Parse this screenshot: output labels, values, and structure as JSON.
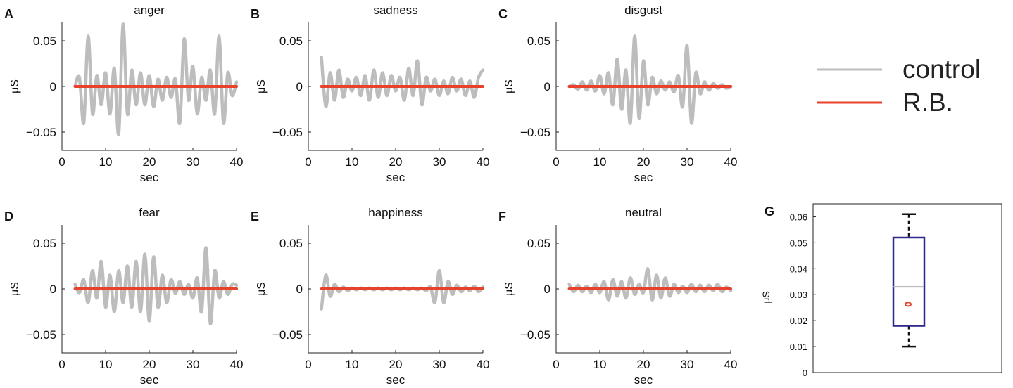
{
  "legend": {
    "items": [
      {
        "label": "control",
        "color": "#bdbdbd"
      },
      {
        "label": "R.B.",
        "color": "#e8412c"
      }
    ]
  },
  "chart_data": [
    {
      "panel": "A",
      "title": "anger",
      "type": "line",
      "xlabel": "sec",
      "ylabel": "μS",
      "xlim": [
        0,
        40
      ],
      "ylim": [
        -0.07,
        0.07
      ],
      "xticks": [
        "0",
        "10",
        "20",
        "30",
        "40"
      ],
      "yticks": [
        "−0.05",
        "0",
        "0.05"
      ],
      "series": [
        {
          "name": "control",
          "color": "#bdbdbd",
          "x": [
            3,
            4,
            5,
            6,
            7,
            8,
            9,
            10,
            11,
            12,
            13,
            14,
            15,
            16,
            17,
            18,
            19,
            20,
            21,
            22,
            23,
            24,
            25,
            26,
            27,
            28,
            29,
            30,
            31,
            32,
            33,
            34,
            35,
            36,
            37,
            38,
            39,
            40
          ],
          "y": [
            0,
            0.01,
            -0.04,
            0.055,
            -0.03,
            0.012,
            -0.02,
            0.015,
            -0.03,
            0.02,
            -0.052,
            0.068,
            -0.03,
            0.018,
            -0.02,
            0.015,
            -0.02,
            0.012,
            -0.022,
            0.008,
            -0.015,
            0.01,
            -0.012,
            0.008,
            -0.04,
            0.052,
            -0.015,
            0.022,
            -0.03,
            0.01,
            -0.015,
            0.018,
            -0.03,
            0.055,
            -0.04,
            0.015,
            -0.01,
            0.005
          ]
        },
        {
          "name": "R.B.",
          "color": "#e8412c",
          "x": [
            3,
            40
          ],
          "y": [
            0,
            0
          ]
        }
      ]
    },
    {
      "panel": "B",
      "title": "sadness",
      "type": "line",
      "xlabel": "sec",
      "ylabel": "μS",
      "xlim": [
        0,
        40
      ],
      "ylim": [
        -0.07,
        0.07
      ],
      "xticks": [
        "0",
        "10",
        "20",
        "30",
        "40"
      ],
      "yticks": [
        "−0.05",
        "0",
        "0.05"
      ],
      "series": [
        {
          "name": "control",
          "color": "#bdbdbd",
          "x": [
            3,
            4,
            5,
            6,
            7,
            8,
            9,
            10,
            11,
            12,
            13,
            14,
            15,
            16,
            17,
            18,
            19,
            20,
            21,
            22,
            23,
            24,
            25,
            26,
            27,
            28,
            29,
            30,
            31,
            32,
            33,
            34,
            35,
            36,
            37,
            38,
            39,
            40
          ],
          "y": [
            0.032,
            -0.022,
            0.015,
            -0.015,
            0.018,
            -0.012,
            0.008,
            -0.005,
            0.01,
            -0.01,
            0.012,
            -0.015,
            0.018,
            -0.012,
            0.015,
            -0.01,
            0.012,
            -0.005,
            0.01,
            -0.015,
            0.02,
            -0.01,
            0.028,
            -0.02,
            0.01,
            -0.005,
            0.008,
            -0.01,
            0.006,
            -0.008,
            0.01,
            -0.005,
            0.008,
            -0.01,
            0.006,
            -0.012,
            0.01,
            0.018
          ]
        },
        {
          "name": "R.B.",
          "color": "#e8412c",
          "x": [
            3,
            40
          ],
          "y": [
            0,
            0
          ]
        }
      ]
    },
    {
      "panel": "C",
      "title": "disgust",
      "type": "line",
      "xlabel": "sec",
      "ylabel": "μS",
      "xlim": [
        0,
        40
      ],
      "ylim": [
        -0.07,
        0.07
      ],
      "xticks": [
        "0",
        "10",
        "20",
        "30",
        "40"
      ],
      "yticks": [
        "−0.05",
        "0",
        "0.05"
      ],
      "series": [
        {
          "name": "control",
          "color": "#bdbdbd",
          "x": [
            3,
            4,
            5,
            6,
            7,
            8,
            9,
            10,
            11,
            12,
            13,
            14,
            15,
            16,
            17,
            18,
            19,
            20,
            21,
            22,
            23,
            24,
            25,
            26,
            27,
            28,
            29,
            30,
            31,
            32,
            33,
            34,
            35,
            36,
            37,
            38,
            39,
            40
          ],
          "y": [
            0,
            0.002,
            -0.003,
            0.005,
            -0.004,
            0.006,
            -0.005,
            0.012,
            -0.008,
            0.015,
            -0.02,
            0.03,
            -0.025,
            0.018,
            -0.04,
            0.055,
            -0.035,
            0.028,
            -0.02,
            0.01,
            -0.008,
            0.006,
            -0.004,
            0.005,
            -0.006,
            0.012,
            -0.022,
            0.045,
            -0.04,
            0.015,
            -0.008,
            0.005,
            -0.004,
            0.003,
            -0.002,
            0.002,
            -0.002,
            0
          ]
        },
        {
          "name": "R.B.",
          "color": "#e8412c",
          "x": [
            3,
            40
          ],
          "y": [
            0,
            0
          ]
        }
      ]
    },
    {
      "panel": "D",
      "title": "fear",
      "type": "line",
      "xlabel": "sec",
      "ylabel": "μS",
      "xlim": [
        0,
        40
      ],
      "ylim": [
        -0.07,
        0.07
      ],
      "xticks": [
        "0",
        "10",
        "20",
        "30",
        "40"
      ],
      "yticks": [
        "−0.05",
        "0",
        "0.05"
      ],
      "series": [
        {
          "name": "control",
          "color": "#bdbdbd",
          "x": [
            3,
            4,
            5,
            6,
            7,
            8,
            9,
            10,
            11,
            12,
            13,
            14,
            15,
            16,
            17,
            18,
            19,
            20,
            21,
            22,
            23,
            24,
            25,
            26,
            27,
            28,
            29,
            30,
            31,
            32,
            33,
            34,
            35,
            36,
            37,
            38,
            39,
            40
          ],
          "y": [
            0.005,
            -0.004,
            0.01,
            -0.015,
            0.02,
            -0.01,
            0.03,
            -0.02,
            0.015,
            -0.025,
            0.02,
            -0.015,
            0.025,
            -0.02,
            0.03,
            -0.025,
            0.038,
            -0.035,
            0.035,
            -0.02,
            0.015,
            -0.015,
            0.01,
            -0.005,
            0.008,
            -0.006,
            0.005,
            -0.01,
            0.012,
            -0.025,
            0.045,
            -0.038,
            0.02,
            -0.01,
            0.008,
            -0.006,
            0.005,
            0.004
          ]
        },
        {
          "name": "R.B.",
          "color": "#e8412c",
          "x": [
            3,
            40
          ],
          "y": [
            0,
            0
          ]
        }
      ]
    },
    {
      "panel": "E",
      "title": "happiness",
      "type": "line",
      "xlabel": "sec",
      "ylabel": "μS",
      "xlim": [
        0,
        40
      ],
      "ylim": [
        -0.07,
        0.07
      ],
      "xticks": [
        "0",
        "10",
        "20",
        "30",
        "40"
      ],
      "yticks": [
        "−0.05",
        "0",
        "0.05"
      ],
      "series": [
        {
          "name": "control",
          "color": "#bdbdbd",
          "x": [
            3,
            4,
            5,
            6,
            7,
            8,
            9,
            10,
            11,
            12,
            13,
            14,
            15,
            16,
            17,
            18,
            19,
            20,
            21,
            22,
            23,
            24,
            25,
            26,
            27,
            28,
            29,
            30,
            31,
            32,
            33,
            34,
            35,
            36,
            37,
            38,
            39,
            40
          ],
          "y": [
            -0.022,
            0.015,
            -0.008,
            0.005,
            -0.003,
            0.002,
            -0.002,
            0.001,
            -0.001,
            0.001,
            -0.001,
            0.001,
            -0.001,
            0.001,
            -0.001,
            0.001,
            -0.001,
            0.001,
            -0.001,
            0.001,
            -0.001,
            0.001,
            -0.001,
            0.001,
            -0.002,
            0.002,
            -0.015,
            0.02,
            -0.015,
            0.008,
            -0.006,
            0.004,
            -0.003,
            0.002,
            -0.002,
            0.003,
            -0.003,
            0.002
          ]
        },
        {
          "name": "R.B.",
          "color": "#e8412c",
          "x": [
            3,
            40
          ],
          "y": [
            0,
            0
          ]
        }
      ]
    },
    {
      "panel": "F",
      "title": "neutral",
      "type": "line",
      "xlabel": "sec",
      "ylabel": "μS",
      "xlim": [
        0,
        40
      ],
      "ylim": [
        -0.07,
        0.07
      ],
      "xticks": [
        "0",
        "10",
        "20",
        "30",
        "40"
      ],
      "yticks": [
        "−0.05",
        "0",
        "0.05"
      ],
      "series": [
        {
          "name": "control",
          "color": "#bdbdbd",
          "x": [
            3,
            4,
            5,
            6,
            7,
            8,
            9,
            10,
            11,
            12,
            13,
            14,
            15,
            16,
            17,
            18,
            19,
            20,
            21,
            22,
            23,
            24,
            25,
            26,
            27,
            28,
            29,
            30,
            31,
            32,
            33,
            34,
            35,
            36,
            37,
            38,
            39,
            40
          ],
          "y": [
            0.005,
            -0.003,
            0.004,
            -0.003,
            0.003,
            -0.004,
            0.005,
            -0.004,
            0.008,
            -0.012,
            0.01,
            -0.008,
            0.008,
            -0.01,
            0.012,
            -0.006,
            0.005,
            -0.004,
            0.022,
            -0.012,
            0.015,
            -0.01,
            0.012,
            -0.008,
            0.005,
            -0.004,
            0.003,
            -0.004,
            0.005,
            -0.003,
            0.004,
            -0.003,
            0.004,
            -0.002,
            0.005,
            -0.003,
            0.002,
            -0.002
          ]
        },
        {
          "name": "R.B.",
          "color": "#e8412c",
          "x": [
            3,
            40
          ],
          "y": [
            0,
            0
          ]
        }
      ]
    },
    {
      "panel": "G",
      "title": "",
      "type": "box",
      "ylabel": "μS",
      "ylim": [
        0,
        0.065
      ],
      "yticks": [
        "0",
        "0.01",
        "0.02",
        "0.03",
        "0.04",
        "0.05",
        "0.06"
      ],
      "box": {
        "min": 0.01,
        "q1": 0.018,
        "median": 0.033,
        "q3": 0.052,
        "max": 0.061,
        "color": "#2e2a8c",
        "median_color": "#b0b0b0"
      },
      "patient_value": {
        "name": "R.B.",
        "value": 0.0263,
        "color": "#e8412c"
      }
    }
  ]
}
